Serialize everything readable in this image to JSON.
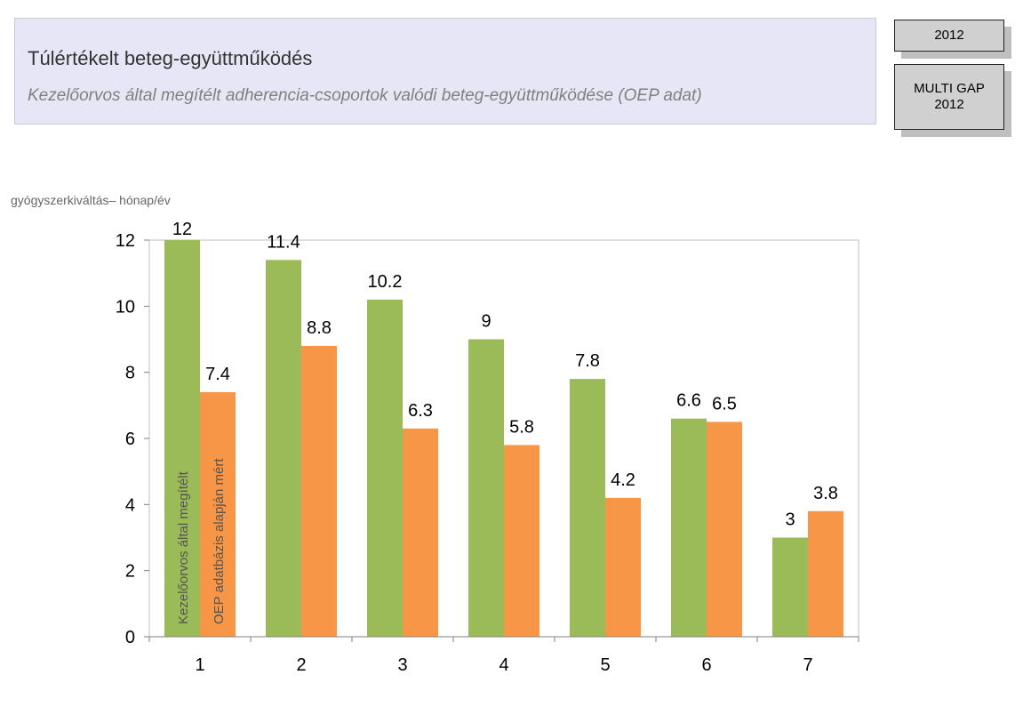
{
  "header": {
    "title": "Túlértékelt beteg-együttműködés",
    "subtitle": "Kezelőorvos által megítélt adherencia-csoportok valódi beteg-együttműködése (OEP adat)"
  },
  "badges": {
    "year": "2012",
    "study_line1": "MULTI GAP",
    "study_line2": "2012"
  },
  "chart_data": {
    "type": "bar",
    "ylabel": "gyógyszerkiváltás– hónap/év",
    "xlabel": "",
    "title": "",
    "categories": [
      "1",
      "2",
      "3",
      "4",
      "5",
      "6",
      "7"
    ],
    "ylim": [
      0,
      12
    ],
    "yticks": [
      0,
      2,
      4,
      6,
      8,
      10,
      12
    ],
    "grid": false,
    "legend": "inside-first-bars-vertical",
    "series": [
      {
        "name": "Kezelőorvos által megítélt",
        "color": "#9bbb59",
        "values": [
          12,
          11.4,
          10.2,
          9,
          7.8,
          6.6,
          3
        ],
        "labels": [
          "12",
          "11.4",
          "10.2",
          "9",
          "7.8",
          "6.6",
          "3"
        ]
      },
      {
        "name": "OEP adatbázis alapján mért",
        "color": "#f79646",
        "values": [
          7.4,
          8.8,
          6.3,
          5.8,
          4.2,
          6.5,
          3.8
        ],
        "labels": [
          "7.4",
          "8.8",
          "6.3",
          "5.8",
          "4.2",
          "6.5",
          "3.8"
        ]
      }
    ]
  }
}
